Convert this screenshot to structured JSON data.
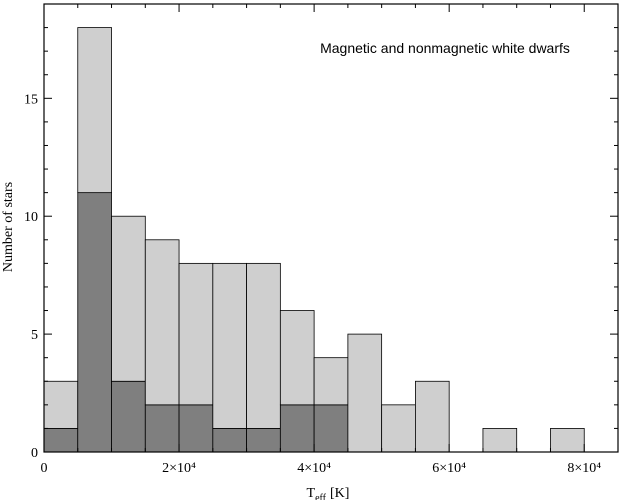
{
  "chart_data": {
    "type": "bar",
    "stacked": true,
    "title": "",
    "annotation": "Magnetic and nonmagnetic white dwarfs",
    "xlabel": "T",
    "xlabel_sub": "eff",
    "xlabel_unit": "[K]",
    "ylabel": "Number of stars",
    "xlim": [
      0,
      85000
    ],
    "ylim": [
      0,
      19
    ],
    "bin_width": 5000,
    "bin_starts": [
      0,
      5000,
      10000,
      15000,
      20000,
      25000,
      30000,
      35000,
      40000,
      45000,
      50000,
      55000,
      60000,
      65000,
      70000,
      75000
    ],
    "series": [
      {
        "name": "",
        "color": "#7f7f7f",
        "values": [
          1,
          11,
          3,
          2,
          2,
          1,
          1,
          2,
          2,
          0,
          0,
          0,
          0,
          0,
          0,
          0
        ]
      },
      {
        "name": "",
        "color": "#cfcfcf",
        "values": [
          2,
          7,
          7,
          7,
          6,
          7,
          7,
          4,
          2,
          5,
          2,
          3,
          0,
          1,
          0,
          1
        ]
      }
    ],
    "x_ticks": [
      {
        "value": 0,
        "label": "0"
      },
      {
        "value": 20000,
        "label": "2×10⁴"
      },
      {
        "value": 40000,
        "label": "4×10⁴"
      },
      {
        "value": 60000,
        "label": "6×10⁴"
      },
      {
        "value": 80000,
        "label": "8×10⁴"
      }
    ],
    "y_ticks": [
      {
        "value": 0,
        "label": "0"
      },
      {
        "value": 5,
        "label": "5"
      },
      {
        "value": 10,
        "label": "10"
      },
      {
        "value": 15,
        "label": "15"
      }
    ],
    "grid": false,
    "legend": "none"
  }
}
